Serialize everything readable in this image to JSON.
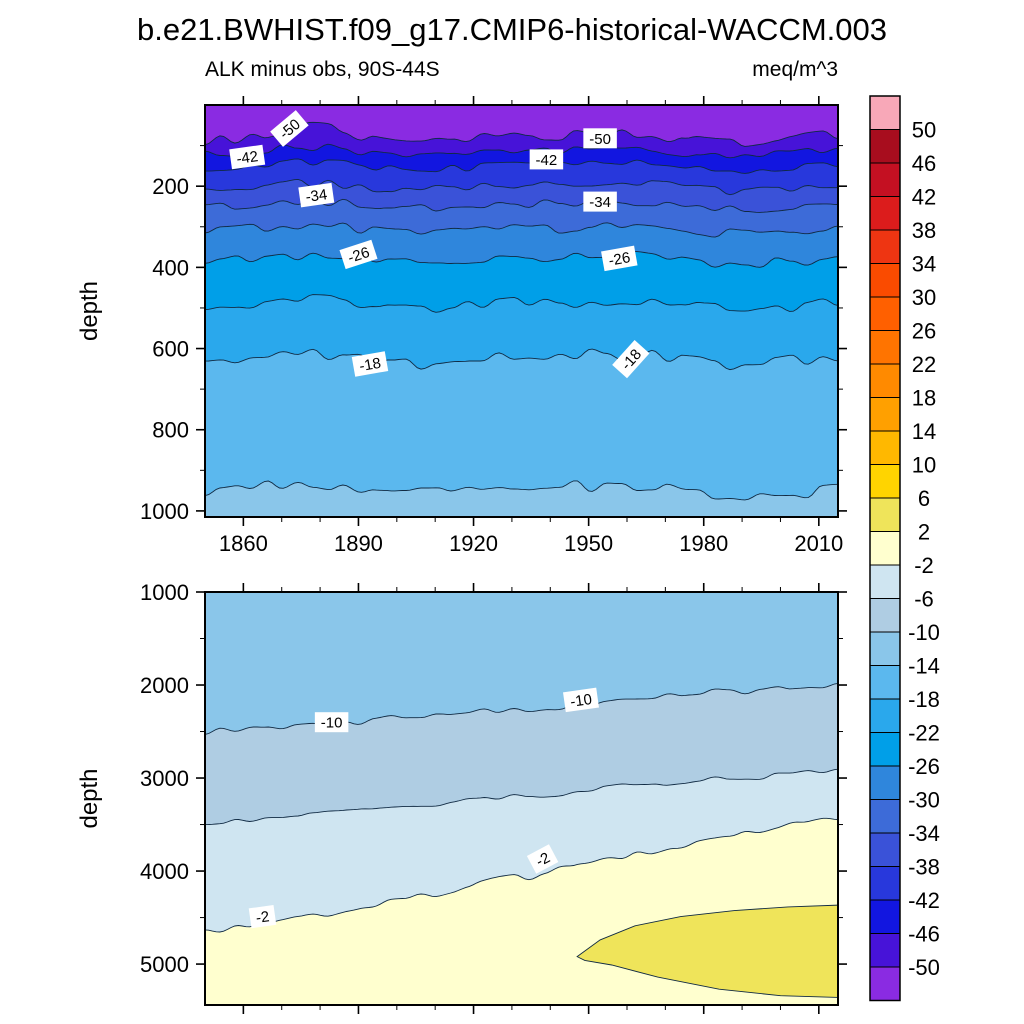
{
  "chart_data": {
    "type": "filled_contour",
    "title": "b.e21.BWHIST.f09_g17.CMIP6-historical-WACCM.003",
    "left_string": "ALK minus obs, 90S-44S",
    "right_string": "meq/m^3",
    "x_axis": {
      "range": [
        1850,
        2015
      ],
      "major_ticks": [
        1860,
        1890,
        1920,
        1950,
        1980,
        2010
      ],
      "minor_step": 10
    },
    "colorbar": {
      "units": "meq/m^3",
      "boundaries": [
        50,
        46,
        42,
        38,
        34,
        30,
        26,
        22,
        18,
        14,
        10,
        6,
        2,
        -2,
        -6,
        -10,
        -14,
        -18,
        -22,
        -26,
        -30,
        -34,
        -38,
        -42,
        -46,
        -50
      ],
      "colors": [
        "#F8A8B8",
        "#A80D1E",
        "#C41022",
        "#DC1C1C",
        "#EE3512",
        "#FA4B00",
        "#FF6000",
        "#FF7400",
        "#FF8A00",
        "#FFA000",
        "#FFB800",
        "#FFD400",
        "#EFE45A",
        "#FFFFCF",
        "#CFE5F1",
        "#AFCDE3",
        "#8AC6EA",
        "#5BB8EE",
        "#2AA8EC",
        "#009FE8",
        "#2F86DC",
        "#3D6BD8",
        "#3A52D8",
        "#2838DC",
        "#1216E0",
        "#4713D8",
        "#8A2BE2"
      ]
    },
    "panels": [
      {
        "id": "upper",
        "ylabel": "depth",
        "depth_range": [
          0,
          1015
        ],
        "y_major_ticks": [
          200,
          400,
          600,
          800,
          1000
        ],
        "y_minor_ticks": [
          100,
          300,
          500,
          700,
          900
        ],
        "x_labeled": true,
        "contours": [
          {
            "level": -50,
            "wiggle": 16,
            "depths": [
              88,
              58,
              95,
              72,
              68,
              95,
              70
            ]
          },
          {
            "level": -46,
            "wiggle": 9,
            "depths": [
              122,
              104,
              126,
              112,
              108,
              128,
              112
            ]
          },
          {
            "level": -42,
            "wiggle": 9,
            "depths": [
              156,
              140,
              160,
              148,
              144,
              162,
              150
            ]
          },
          {
            "level": -38,
            "wiggle": 11,
            "depths": [
              206,
              192,
              210,
              198,
              194,
              212,
              200
            ]
          },
          {
            "level": -34,
            "wiggle": 11,
            "depths": [
              252,
              238,
              256,
              245,
              240,
              258,
              248
            ]
          },
          {
            "level": -30,
            "wiggle": 13,
            "depths": [
              312,
              298,
              316,
              305,
              300,
              318,
              308
            ]
          },
          {
            "level": -26,
            "wiggle": 14,
            "depths": [
              386,
              370,
              390,
              378,
              372,
              392,
              380
            ]
          },
          {
            "level": -22,
            "wiggle": 14,
            "depths": [
              496,
              480,
              500,
              488,
              482,
              502,
              490
            ]
          },
          {
            "level": -18,
            "wiggle": 15,
            "depths": [
              630,
              612,
              636,
              620,
              615,
              638,
              625
            ]
          },
          {
            "level": -14,
            "wiggle": 17,
            "depths": [
              955,
              935,
              960,
              942,
              938,
              962,
              950
            ]
          }
        ],
        "labels": [
          {
            "text": "-50",
            "year": 1872,
            "depth": 58,
            "rot": -40
          },
          {
            "text": "-50",
            "year": 1953,
            "depth": 82,
            "rot": 0
          },
          {
            "text": "-42",
            "year": 1861,
            "depth": 128,
            "rot": -8
          },
          {
            "text": "-42",
            "year": 1939,
            "depth": 134,
            "rot": 0
          },
          {
            "text": "-34",
            "year": 1879,
            "depth": 222,
            "rot": -8
          },
          {
            "text": "-34",
            "year": 1953,
            "depth": 238,
            "rot": 0
          },
          {
            "text": "-26",
            "year": 1890,
            "depth": 368,
            "rot": -18
          },
          {
            "text": "-26",
            "year": 1958,
            "depth": 378,
            "rot": -10
          },
          {
            "text": "-18",
            "year": 1893,
            "depth": 638,
            "rot": -10
          },
          {
            "text": "-18",
            "year": 1961,
            "depth": 626,
            "rot": -48
          }
        ]
      },
      {
        "id": "lower",
        "ylabel": "depth",
        "depth_range": [
          1000,
          5440
        ],
        "y_major_ticks": [
          1000,
          2000,
          3000,
          4000,
          5000
        ],
        "y_minor_ticks": [
          1500,
          2500,
          3500,
          4500
        ],
        "x_labeled": false,
        "contours": [
          {
            "level": -10,
            "wiggle": 35,
            "depths": [
              2500,
              2430,
              2350,
              2260,
              2160,
              2070,
              1990
            ]
          },
          {
            "level": -6,
            "wiggle": 35,
            "depths": [
              3470,
              3395,
              3300,
              3190,
              3080,
              2990,
              2930
            ]
          },
          {
            "level": -2,
            "wiggle": 40,
            "depths": [
              4650,
              4480,
              4280,
              4060,
              3830,
              3620,
              3430
            ]
          }
        ],
        "blobs": [
          {
            "level_range": [
              2,
              6
            ],
            "points": [
              [
                1947,
                4920
              ],
              [
                1953,
                4740
              ],
              [
                1962,
                4590
              ],
              [
                1974,
                4490
              ],
              [
                1988,
                4425
              ],
              [
                2002,
                4385
              ],
              [
                2016,
                4365
              ],
              [
                2016,
                5360
              ],
              [
                2000,
                5340
              ],
              [
                1984,
                5270
              ],
              [
                1968,
                5140
              ],
              [
                1956,
                5010
              ],
              [
                1949,
                4960
              ]
            ]
          }
        ],
        "labels": [
          {
            "text": "-10",
            "year": 1883,
            "depth": 2400,
            "rot": 0
          },
          {
            "text": "-10",
            "year": 1948,
            "depth": 2160,
            "rot": -8
          },
          {
            "text": "-2",
            "year": 1938,
            "depth": 3870,
            "rot": -28
          },
          {
            "text": "-2",
            "year": 1865,
            "depth": 4490,
            "rot": -8
          }
        ]
      }
    ]
  }
}
